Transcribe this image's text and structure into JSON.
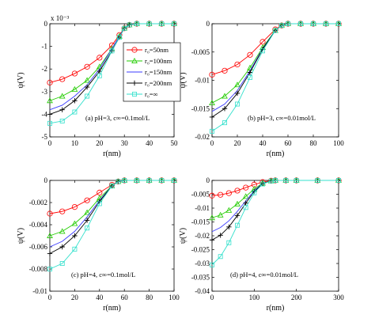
{
  "figure": {
    "legend": {
      "placement": "inside top-right of panel (a)",
      "entries": [
        {
          "label": "r₀=50nm",
          "color": "#ff0000",
          "marker": "circle"
        },
        {
          "label": "r₀=100nm",
          "color": "#22cc00",
          "marker": "triangle"
        },
        {
          "label": "r₀=150nm",
          "color": "#3b3bff",
          "marker": "none"
        },
        {
          "label": "r₀=200nm",
          "color": "#000000",
          "marker": "plus"
        },
        {
          "label": "r₀=∞",
          "color": "#33e0cc",
          "marker": "square"
        }
      ]
    }
  },
  "chart_data": [
    {
      "type": "line",
      "caption": "(a) pH=3, c∞=0.1mol/L",
      "xlabel": "r(nm)",
      "ylabel": "ψ(V)",
      "xlim": [
        0,
        50
      ],
      "ylim": [
        -0.005,
        0
      ],
      "y_multiplier": "x 10⁻³",
      "xticks": [
        0,
        10,
        20,
        30,
        40,
        50
      ],
      "yticks": [
        -5,
        -4,
        -3,
        -2,
        -1,
        0
      ],
      "yticks_are_scaled": true,
      "series": [
        {
          "name": "r₀=50nm",
          "x": [
            0,
            5,
            10,
            15,
            20,
            25,
            28,
            30,
            32,
            35,
            40,
            45,
            50
          ],
          "y": [
            -0.0026,
            -0.00245,
            -0.0022,
            -0.0019,
            -0.0015,
            -0.00095,
            -0.0005,
            -0.0002,
            -5e-05,
            0,
            0,
            0,
            0
          ]
        },
        {
          "name": "r₀=100nm",
          "x": [
            0,
            5,
            10,
            15,
            20,
            25,
            28,
            30,
            32,
            35,
            40,
            45,
            50
          ],
          "y": [
            -0.0034,
            -0.0032,
            -0.0029,
            -0.0025,
            -0.0019,
            -0.0011,
            -0.00055,
            -0.0002,
            -5e-05,
            0,
            0,
            0,
            0
          ]
        },
        {
          "name": "r₀=150nm",
          "x": [
            0,
            5,
            10,
            15,
            20,
            25,
            28,
            30,
            32,
            35,
            40,
            45,
            50
          ],
          "y": [
            -0.0038,
            -0.0036,
            -0.0032,
            -0.0027,
            -0.002,
            -0.0011,
            -0.00055,
            -0.0002,
            -5e-05,
            0,
            0,
            0,
            0
          ]
        },
        {
          "name": "r₀=200nm",
          "x": [
            0,
            5,
            10,
            15,
            20,
            25,
            28,
            30,
            32,
            35,
            40,
            45,
            50
          ],
          "y": [
            -0.004,
            -0.0038,
            -0.0034,
            -0.0028,
            -0.0021,
            -0.0012,
            -0.0006,
            -0.0002,
            -5e-05,
            0,
            0,
            0,
            0
          ]
        },
        {
          "name": "r₀=∞",
          "x": [
            0,
            5,
            10,
            15,
            20,
            25,
            28,
            30,
            32,
            35,
            40,
            45,
            50
          ],
          "y": [
            -0.0044,
            -0.0043,
            -0.0039,
            -0.0032,
            -0.0023,
            -0.0012,
            -0.0006,
            -0.0002,
            -5e-05,
            0,
            0,
            0,
            0
          ]
        }
      ]
    },
    {
      "type": "line",
      "caption": "(b) pH=3, c∞=0.01mol/L",
      "xlabel": "r(nm)",
      "ylabel": "ψ(V)",
      "xlim": [
        0,
        100
      ],
      "ylim": [
        -0.02,
        0
      ],
      "xticks": [
        0,
        20,
        40,
        60,
        80,
        100
      ],
      "yticks": [
        -0.02,
        -0.015,
        -0.01,
        -0.005,
        0
      ],
      "ytick_labels": [
        "-0.02",
        "-0.015",
        "-0.01",
        "-0.005",
        "0"
      ],
      "series": [
        {
          "name": "r₀=50nm",
          "x": [
            0,
            10,
            20,
            30,
            40,
            50,
            55,
            60,
            70,
            80,
            90,
            100
          ],
          "y": [
            -0.009,
            -0.0083,
            -0.0072,
            -0.0055,
            -0.0032,
            -0.001,
            -0.0003,
            0,
            0,
            0,
            0,
            0
          ]
        },
        {
          "name": "r₀=100nm",
          "x": [
            0,
            10,
            20,
            30,
            40,
            50,
            55,
            60,
            70,
            80,
            90,
            100
          ],
          "y": [
            -0.014,
            -0.0128,
            -0.0108,
            -0.0078,
            -0.0042,
            -0.0012,
            -0.0003,
            0,
            0,
            0,
            0,
            0
          ]
        },
        {
          "name": "r₀=150nm",
          "x": [
            0,
            10,
            20,
            30,
            40,
            50,
            55,
            60,
            70,
            80,
            90,
            100
          ],
          "y": [
            -0.0155,
            -0.0142,
            -0.0118,
            -0.0083,
            -0.0044,
            -0.0012,
            -0.0003,
            0,
            0,
            0,
            0,
            0
          ]
        },
        {
          "name": "r₀=200nm",
          "x": [
            0,
            10,
            20,
            30,
            40,
            50,
            55,
            60,
            70,
            80,
            90,
            100
          ],
          "y": [
            -0.0165,
            -0.015,
            -0.0123,
            -0.0086,
            -0.0045,
            -0.0012,
            -0.0003,
            0,
            0,
            0,
            0,
            0
          ]
        },
        {
          "name": "r₀=∞",
          "x": [
            0,
            10,
            20,
            30,
            40,
            50,
            55,
            60,
            70,
            80,
            90,
            100
          ],
          "y": [
            -0.019,
            -0.0175,
            -0.0142,
            -0.0095,
            -0.0048,
            -0.0012,
            -0.0003,
            0,
            0,
            0,
            0,
            0
          ]
        }
      ]
    },
    {
      "type": "line",
      "caption": "(c) pH=4, c∞=0.1mol/L",
      "xlabel": "r(nm)",
      "ylabel": "ψ(V)",
      "xlim": [
        0,
        100
      ],
      "ylim": [
        -0.01,
        0
      ],
      "xticks": [
        0,
        20,
        40,
        60,
        80,
        100
      ],
      "yticks": [
        -0.01,
        -0.008,
        -0.006,
        -0.004,
        -0.002,
        0
      ],
      "ytick_labels": [
        "-0.01",
        "-0.008",
        "-0.006",
        "-0.004",
        "-0.002",
        "0"
      ],
      "series": [
        {
          "name": "r₀=50nm",
          "x": [
            0,
            10,
            20,
            30,
            40,
            50,
            55,
            60,
            70,
            80,
            90,
            100
          ],
          "y": [
            -0.003,
            -0.0028,
            -0.0024,
            -0.0018,
            -0.0011,
            -0.0004,
            -0.0001,
            0,
            0,
            0,
            0,
            0
          ]
        },
        {
          "name": "r₀=100nm",
          "x": [
            0,
            10,
            20,
            30,
            40,
            50,
            55,
            60,
            70,
            80,
            90,
            100
          ],
          "y": [
            -0.005,
            -0.0046,
            -0.0039,
            -0.0029,
            -0.0016,
            -0.0005,
            -0.0001,
            0,
            0,
            0,
            0,
            0
          ]
        },
        {
          "name": "r₀=150nm",
          "x": [
            0,
            10,
            20,
            30,
            40,
            50,
            55,
            60,
            70,
            80,
            90,
            100
          ],
          "y": [
            -0.006,
            -0.0055,
            -0.0046,
            -0.0033,
            -0.0018,
            -0.0005,
            -0.0001,
            0,
            0,
            0,
            0,
            0
          ]
        },
        {
          "name": "r₀=200nm",
          "x": [
            0,
            10,
            20,
            30,
            40,
            50,
            55,
            60,
            70,
            80,
            90,
            100
          ],
          "y": [
            -0.0066,
            -0.006,
            -0.005,
            -0.0036,
            -0.0019,
            -0.0005,
            -0.0001,
            0,
            0,
            0,
            0,
            0
          ]
        },
        {
          "name": "r₀=∞",
          "x": [
            0,
            10,
            20,
            30,
            40,
            50,
            55,
            60,
            70,
            80,
            90,
            100
          ],
          "y": [
            -0.008,
            -0.0075,
            -0.0062,
            -0.0043,
            -0.0021,
            -0.0005,
            -0.0001,
            0,
            0,
            0,
            0,
            0
          ]
        }
      ]
    },
    {
      "type": "line",
      "caption": "(d) pH=4, c∞=0.01mol/L",
      "xlabel": "r(nm)",
      "ylabel": "ψ(V)",
      "xlim": [
        0,
        300
      ],
      "ylim": [
        -0.04,
        0
      ],
      "xticks": [
        0,
        100,
        200,
        300
      ],
      "yticks": [
        -0.04,
        -0.035,
        -0.03,
        -0.025,
        -0.02,
        -0.015,
        -0.01,
        -0.005,
        0
      ],
      "ytick_labels": [
        "-0.04",
        "-0.035",
        "-0.03",
        "-0.025",
        "-0.02",
        "-0.015",
        "-0.01",
        "-0.005",
        "0"
      ],
      "series": [
        {
          "name": "r₀=50nm",
          "x": [
            0,
            20,
            40,
            60,
            80,
            100,
            120,
            140,
            150,
            175,
            200,
            250,
            300
          ],
          "y": [
            -0.0055,
            -0.0052,
            -0.0046,
            -0.0037,
            -0.0026,
            -0.0015,
            -0.0006,
            -0.0001,
            0,
            0,
            0,
            0,
            0
          ]
        },
        {
          "name": "r₀=100nm",
          "x": [
            0,
            20,
            40,
            60,
            80,
            100,
            120,
            140,
            150,
            175,
            200,
            250,
            300
          ],
          "y": [
            -0.0135,
            -0.0125,
            -0.0108,
            -0.0085,
            -0.0058,
            -0.0031,
            -0.001,
            -0.0002,
            0,
            0,
            0,
            0,
            0
          ]
        },
        {
          "name": "r₀=150nm",
          "x": [
            0,
            20,
            40,
            60,
            80,
            100,
            120,
            140,
            150,
            175,
            200,
            250,
            300
          ],
          "y": [
            -0.0185,
            -0.017,
            -0.0146,
            -0.0112,
            -0.0074,
            -0.0037,
            -0.0011,
            -0.0002,
            0,
            0,
            0,
            0,
            0
          ]
        },
        {
          "name": "r₀=200nm",
          "x": [
            0,
            20,
            40,
            60,
            80,
            100,
            120,
            140,
            150,
            175,
            200,
            250,
            300
          ],
          "y": [
            -0.0215,
            -0.0198,
            -0.0168,
            -0.0127,
            -0.0082,
            -0.004,
            -0.0012,
            -0.0002,
            0,
            0,
            0,
            0,
            0
          ]
        },
        {
          "name": "r₀=∞",
          "x": [
            0,
            20,
            40,
            60,
            80,
            100,
            120,
            140,
            150,
            175,
            200,
            250,
            300
          ],
          "y": [
            -0.0305,
            -0.0275,
            -0.0225,
            -0.0162,
            -0.0098,
            -0.0045,
            -0.0013,
            -0.0002,
            0,
            0,
            0,
            0,
            0
          ]
        }
      ]
    }
  ]
}
